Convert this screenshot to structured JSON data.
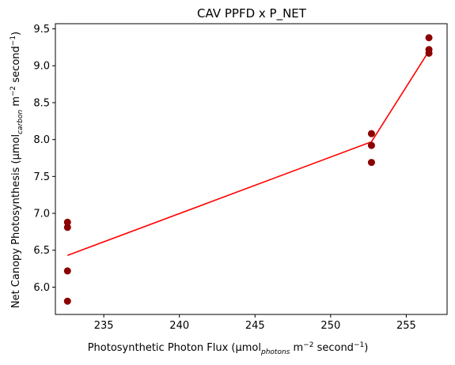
{
  "chart_data": {
    "type": "scatter",
    "title": "CAV PPFD x P_NET",
    "xlabel": {
      "pre": "Photosynthetic Photon Flux (µmol",
      "sub": "photons",
      "mid": " m",
      "sup1": "−2",
      "post": " second",
      "sup2": "−1",
      "end": ")"
    },
    "ylabel": {
      "pre": "Net Canopy Photosynthesis (µmol",
      "sub": "carbon",
      "mid": " m",
      "sup1": "−2",
      "post": " second",
      "sup2": "−1",
      "end": ")"
    },
    "xlim": [
      231.8,
      257.7
    ],
    "ylim": [
      5.63,
      9.57
    ],
    "xticks": [
      235,
      240,
      245,
      250,
      255
    ],
    "xtick_labels": [
      "235",
      "240",
      "245",
      "250",
      "255"
    ],
    "yticks": [
      6.0,
      6.5,
      7.0,
      7.5,
      8.0,
      8.5,
      9.0,
      9.5
    ],
    "ytick_labels": [
      "6.0",
      "6.5",
      "7.0",
      "7.5",
      "8.0",
      "8.5",
      "9.0",
      "9.5"
    ],
    "series": [
      {
        "kind": "scatter",
        "color": "#8b0000",
        "points": [
          {
            "x": 232.6,
            "y": 6.88
          },
          {
            "x": 232.6,
            "y": 6.81
          },
          {
            "x": 232.6,
            "y": 6.22
          },
          {
            "x": 232.6,
            "y": 5.81
          },
          {
            "x": 252.7,
            "y": 8.08
          },
          {
            "x": 252.7,
            "y": 7.92
          },
          {
            "x": 252.7,
            "y": 7.69
          },
          {
            "x": 256.5,
            "y": 9.38
          },
          {
            "x": 256.5,
            "y": 9.22
          },
          {
            "x": 256.5,
            "y": 9.17
          }
        ]
      },
      {
        "kind": "line",
        "color": "#ff0000",
        "points": [
          {
            "x": 232.6,
            "y": 6.43
          },
          {
            "x": 252.7,
            "y": 7.97
          },
          {
            "x": 256.5,
            "y": 9.2
          }
        ]
      }
    ],
    "grid": false,
    "legend": "none"
  }
}
